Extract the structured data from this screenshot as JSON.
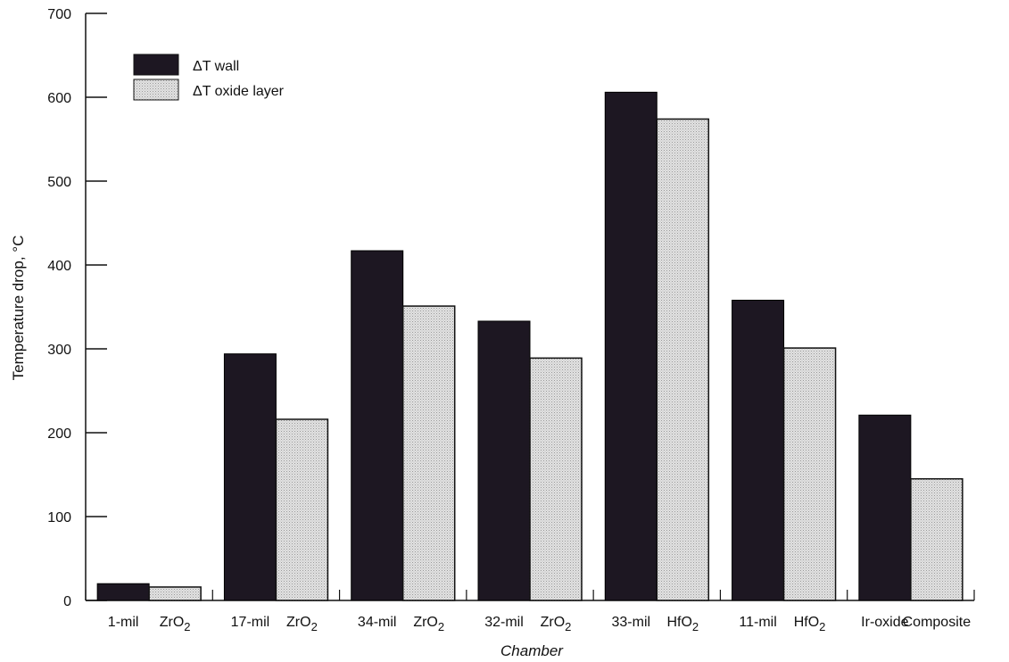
{
  "chart_data": {
    "type": "bar",
    "title": "",
    "xlabel": "Chamber",
    "ylabel": "Temperature drop, °C",
    "ylim": [
      0,
      700
    ],
    "yticks": [
      0,
      100,
      200,
      300,
      400,
      500,
      600,
      700
    ],
    "grid": false,
    "legend_position": "top-left",
    "categories": [
      {
        "left": "1-mil",
        "right": "ZrO",
        "sub": "2"
      },
      {
        "left": "17-mil",
        "right": "ZrO",
        "sub": "2"
      },
      {
        "left": "34-mil",
        "right": "ZrO",
        "sub": "2"
      },
      {
        "left": "32-mil",
        "right": "ZrO",
        "sub": "2"
      },
      {
        "left": "33-mil",
        "right": "HfO",
        "sub": "2"
      },
      {
        "left": "11-mil",
        "right": "HfO",
        "sub": "2"
      },
      {
        "left": "Ir-oxide",
        "right": "Composite",
        "sub": ""
      }
    ],
    "series": [
      {
        "name": "ΔT wall",
        "color": "#1d1722",
        "values": [
          20,
          294,
          417,
          333,
          606,
          358,
          221
        ]
      },
      {
        "name": "ΔT oxide layer",
        "color": "#d9d9d9",
        "values": [
          16,
          216,
          351,
          289,
          574,
          301,
          145
        ]
      }
    ]
  }
}
